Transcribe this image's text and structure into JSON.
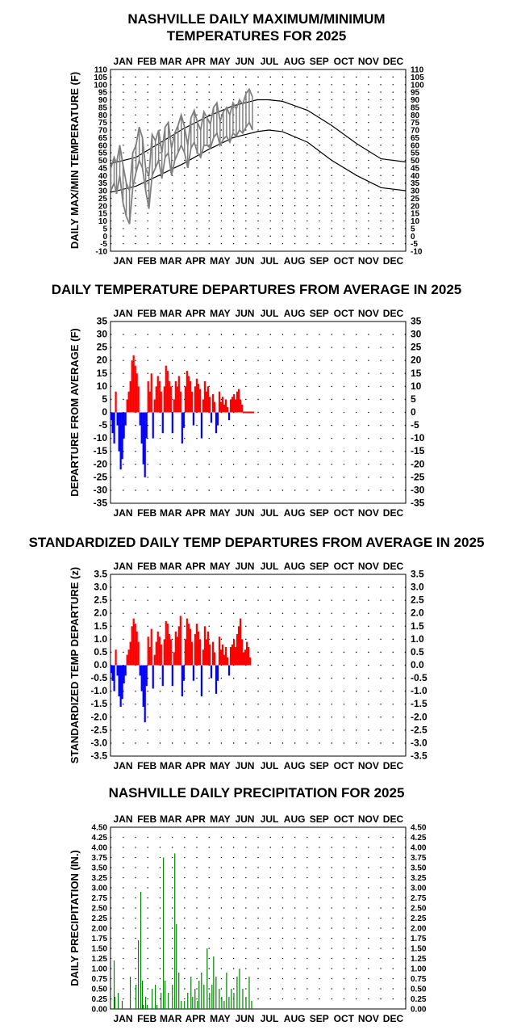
{
  "months": [
    "JAN",
    "FEB",
    "MAR",
    "APR",
    "MAY",
    "JUN",
    "JUL",
    "AUG",
    "SEP",
    "OCT",
    "NOV",
    "DEC"
  ],
  "chart_data": [
    {
      "id": "temps",
      "type": "line",
      "title_line1": "NASHVILLE DAILY MAXIMUM/MINIMUM",
      "title_line2": "TEMPERATURES FOR 2025",
      "ylabel": "DAILY MAX/MIN TEMPERATURE (F)",
      "ylim": [
        -10,
        110
      ],
      "ytick_step": 5,
      "grid": "dotted",
      "series": [
        {
          "id": "normal_max",
          "color": "#000000",
          "x": [
            1,
            32,
            60,
            91,
            121,
            152,
            182,
            196,
            213,
            244,
            274,
            305,
            335,
            365
          ],
          "y": [
            48,
            52,
            61,
            71,
            79,
            86,
            90,
            90,
            89,
            83,
            73,
            61,
            51,
            49
          ]
        },
        {
          "id": "normal_min",
          "color": "#000000",
          "x": [
            1,
            32,
            60,
            91,
            121,
            152,
            182,
            196,
            213,
            244,
            274,
            305,
            335,
            365
          ],
          "y": [
            29,
            33,
            40,
            48,
            57,
            65,
            69,
            70,
            69,
            62,
            50,
            40,
            32,
            30
          ]
        },
        {
          "id": "actual_max",
          "color": "#808080",
          "x": [
            1,
            5,
            8,
            12,
            16,
            20,
            24,
            28,
            32,
            36,
            40,
            44,
            48,
            52,
            56,
            60,
            64,
            68,
            72,
            76,
            80,
            84,
            88,
            92,
            96,
            100,
            104,
            108,
            112,
            116,
            120,
            124,
            128,
            132,
            136,
            140,
            144,
            148,
            152,
            156,
            160,
            164,
            168,
            172,
            176
          ],
          "y": [
            45,
            52,
            48,
            60,
            47,
            35,
            30,
            55,
            60,
            72,
            65,
            45,
            40,
            67,
            63,
            70,
            55,
            72,
            75,
            58,
            68,
            73,
            80,
            72,
            60,
            78,
            83,
            75,
            70,
            82,
            78,
            74,
            85,
            88,
            76,
            82,
            85,
            80,
            88,
            84,
            90,
            87,
            94,
            97,
            92
          ]
        },
        {
          "id": "actual_min",
          "color": "#808080",
          "x": [
            1,
            5,
            8,
            12,
            16,
            20,
            24,
            28,
            32,
            36,
            40,
            44,
            48,
            52,
            56,
            60,
            64,
            68,
            72,
            76,
            80,
            84,
            88,
            92,
            96,
            100,
            104,
            108,
            112,
            116,
            120,
            124,
            128,
            132,
            136,
            140,
            144,
            148,
            152,
            156,
            160,
            164,
            168,
            172,
            176
          ],
          "y": [
            30,
            35,
            28,
            40,
            22,
            13,
            8,
            32,
            42,
            50,
            45,
            30,
            18,
            40,
            45,
            50,
            38,
            52,
            55,
            40,
            50,
            55,
            60,
            55,
            45,
            58,
            62,
            55,
            52,
            60,
            60,
            58,
            65,
            68,
            60,
            64,
            66,
            62,
            68,
            66,
            70,
            68,
            72,
            75,
            70
          ]
        }
      ]
    },
    {
      "id": "departures",
      "type": "bar",
      "title": "DAILY TEMPERATURE DEPARTURES FROM AVERAGE IN 2025",
      "ylabel": "DEPARTURE FROM AVERAGE (F)",
      "ylim": [
        -35,
        35
      ],
      "ytick_step": 5,
      "pos_color": "#ff0000",
      "neg_color": "#0000ff",
      "days": [
        1,
        3,
        5,
        7,
        9,
        11,
        13,
        15,
        17,
        19,
        21,
        23,
        25,
        27,
        29,
        31,
        33,
        35,
        37,
        39,
        41,
        43,
        45,
        47,
        49,
        51,
        53,
        55,
        57,
        59,
        61,
        63,
        65,
        67,
        69,
        71,
        73,
        75,
        77,
        79,
        81,
        83,
        85,
        87,
        89,
        91,
        93,
        95,
        97,
        99,
        101,
        103,
        105,
        107,
        109,
        111,
        113,
        115,
        117,
        119,
        121,
        123,
        125,
        127,
        129,
        131,
        133,
        135,
        137,
        139,
        141,
        143,
        145,
        147,
        149,
        151,
        153,
        155,
        157,
        159,
        161,
        163,
        165,
        167,
        169,
        171,
        173,
        175,
        177
      ],
      "values": [
        -3,
        -8,
        -12,
        8,
        -5,
        -15,
        -22,
        -18,
        -10,
        -5,
        5,
        8,
        12,
        20,
        22,
        18,
        15,
        10,
        -5,
        -12,
        -20,
        -25,
        -10,
        12,
        8,
        15,
        -10,
        5,
        10,
        14,
        12,
        8,
        -8,
        10,
        18,
        16,
        12,
        10,
        -8,
        5,
        12,
        10,
        14,
        8,
        -12,
        -6,
        10,
        16,
        14,
        12,
        8,
        -5,
        10,
        13,
        11,
        9,
        -10,
        5,
        12,
        8,
        10,
        6,
        -4,
        7,
        4,
        -8,
        -5,
        8,
        4,
        6,
        3,
        5,
        2,
        -3,
        5,
        6,
        7,
        5,
        8,
        9,
        5,
        3,
        0,
        0,
        0,
        0,
        0,
        0,
        0
      ]
    },
    {
      "id": "standardized",
      "type": "bar",
      "title": "STANDARDIZED DAILY TEMP DEPARTURES FROM AVERAGE IN 2025",
      "ylabel": "STANDARDIZED TEMP DEPARTURE (z)",
      "ylim": [
        -3.5,
        3.5
      ],
      "ytick_step": 0.5,
      "pos_color": "#ff0000",
      "neg_color": "#0000ff",
      "days": [
        1,
        3,
        5,
        7,
        9,
        11,
        13,
        15,
        17,
        19,
        21,
        23,
        25,
        27,
        29,
        31,
        33,
        35,
        37,
        39,
        41,
        43,
        45,
        47,
        49,
        51,
        53,
        55,
        57,
        59,
        61,
        63,
        65,
        67,
        69,
        71,
        73,
        75,
        77,
        79,
        81,
        83,
        85,
        87,
        89,
        91,
        93,
        95,
        97,
        99,
        101,
        103,
        105,
        107,
        109,
        111,
        113,
        115,
        117,
        119,
        121,
        123,
        125,
        127,
        129,
        131,
        133,
        135,
        137,
        139,
        141,
        143,
        145,
        147,
        149,
        151,
        153,
        155,
        157,
        159,
        161,
        163,
        165,
        167,
        169,
        171,
        173
      ],
      "values": [
        -0.3,
        -0.6,
        -1.0,
        0.6,
        -0.4,
        -1.2,
        -1.6,
        -1.3,
        -0.7,
        -0.4,
        0.4,
        0.6,
        0.9,
        1.5,
        1.8,
        1.6,
        1.3,
        0.9,
        -0.4,
        -1.0,
        -1.6,
        -2.2,
        -0.8,
        1.1,
        0.7,
        1.4,
        -0.9,
        0.4,
        0.9,
        1.3,
        1.1,
        0.8,
        -0.8,
        1.0,
        1.7,
        1.6,
        1.2,
        1.0,
        -0.8,
        0.5,
        1.3,
        1.1,
        1.5,
        1.9,
        -1.2,
        -0.6,
        1.0,
        1.8,
        1.6,
        1.4,
        0.9,
        -0.6,
        1.2,
        1.6,
        1.3,
        1.0,
        -1.2,
        0.6,
        1.5,
        1.0,
        1.3,
        0.8,
        -0.5,
        0.9,
        0.5,
        -1.1,
        -0.6,
        1.1,
        0.6,
        0.8,
        0.4,
        0.7,
        0.3,
        -0.4,
        0.7,
        0.8,
        1.0,
        0.7,
        1.2,
        1.5,
        1.8,
        1.0,
        0.5,
        0.6,
        0.9,
        0.7,
        0.3
      ]
    },
    {
      "id": "precip",
      "type": "bar",
      "title": "NASHVILLE DAILY PRECIPITATION FOR 2025",
      "ylabel": "DAILY PRECIPITATION (IN.)",
      "ylim": [
        0,
        4.5
      ],
      "ytick_step": 0.25,
      "color": "#008000",
      "days": [
        5,
        6,
        10,
        15,
        25,
        32,
        35,
        38,
        40,
        41,
        44,
        46,
        52,
        56,
        58,
        63,
        66,
        68,
        72,
        77,
        80,
        82,
        85,
        88,
        92,
        96,
        100,
        102,
        105,
        108,
        110,
        113,
        116,
        120,
        123,
        126,
        128,
        131,
        135,
        138,
        141,
        144,
        147,
        150,
        153,
        157,
        160,
        164,
        168,
        172,
        175
      ],
      "values": [
        1.2,
        0.3,
        0.4,
        0.2,
        0.8,
        0.6,
        1.7,
        2.9,
        0.7,
        0.1,
        0.3,
        0.1,
        0.5,
        0.6,
        0.1,
        0.4,
        3.75,
        0.7,
        0.4,
        0.6,
        3.85,
        2.1,
        0.9,
        0.2,
        0.2,
        0.4,
        0.8,
        0.3,
        0.5,
        0.2,
        0.7,
        0.9,
        0.6,
        1.5,
        0.4,
        0.6,
        1.3,
        0.8,
        0.5,
        0.3,
        0.2,
        0.9,
        0.3,
        0.5,
        0.4,
        0.8,
        1.0,
        0.5,
        0.3,
        0.8,
        0.2
      ]
    }
  ]
}
